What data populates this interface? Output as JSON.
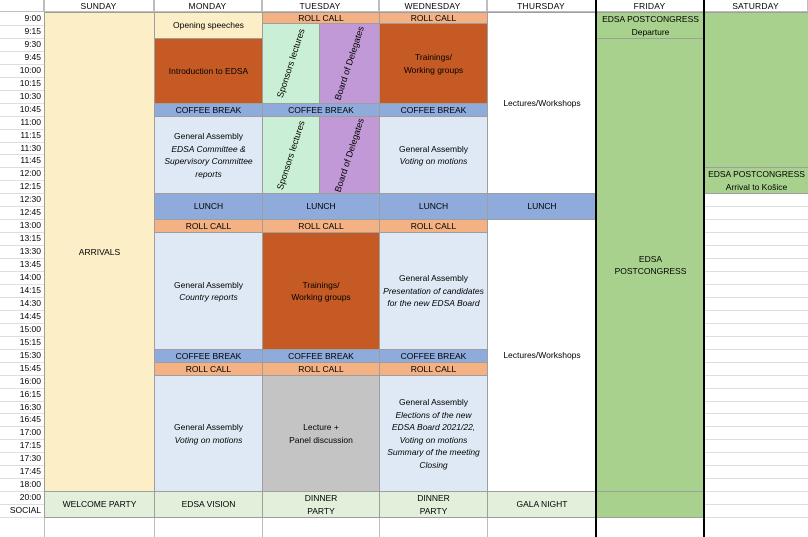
{
  "days": [
    "SUNDAY",
    "MONDAY",
    "TUESDAY",
    "WEDNESDAY",
    "THURSDAY",
    "FRIDAY",
    "SATURDAY"
  ],
  "times": [
    "9:00",
    "9:15",
    "9:30",
    "9:45",
    "10:00",
    "10:15",
    "10:30",
    "10:45",
    "11:00",
    "11:15",
    "11:30",
    "11:45",
    "12:00",
    "12:15",
    "12:30",
    "12:45",
    "13:00",
    "13:15",
    "13:30",
    "13:45",
    "14:00",
    "14:15",
    "14:30",
    "14:45",
    "15:00",
    "15:15",
    "15:30",
    "15:45",
    "16:00",
    "16:15",
    "16:30",
    "16:45",
    "17:00",
    "17:15",
    "17:30",
    "17:45",
    "18:00",
    "20:00",
    "SOCIAL"
  ],
  "colors": {
    "yellow": "#fcefc8",
    "orange_light": "#f4b183",
    "orange_dark": "#c55a25",
    "blue_light": "#dee9f5",
    "blue_mid": "#8eabdc",
    "mint": "#c9f0d6",
    "purple": "#c299d7",
    "gray": "#c4c4c4",
    "green": "#a8d18d",
    "pale_green": "#e2efda"
  },
  "blocks": [
    {
      "day": 0,
      "start": 0,
      "end": 37,
      "color": "yellow",
      "lines": [
        {
          "t": "ARRIVALS"
        }
      ]
    },
    {
      "day": 0,
      "start": 37,
      "end": 39,
      "color": "pale_green",
      "lines": [
        {
          "t": "WELCOME PARTY"
        }
      ]
    },
    {
      "day": 1,
      "start": 0,
      "end": 2,
      "color": "yellow",
      "lines": [
        {
          "t": "Opening speeches"
        }
      ]
    },
    {
      "day": 1,
      "start": 2,
      "end": 7,
      "color": "orange_dark",
      "lines": [
        {
          "t": "Introduction to EDSA"
        }
      ]
    },
    {
      "day": 1,
      "start": 7,
      "end": 8,
      "color": "blue_mid",
      "lines": [
        {
          "t": "COFFEE BREAK"
        }
      ]
    },
    {
      "day": 1,
      "start": 8,
      "end": 14,
      "color": "blue_light",
      "lines": [
        {
          "t": "General Assembly"
        },
        {
          "t": "EDSA Committee &",
          "i": true
        },
        {
          "t": "Supervisory Committee",
          "i": true
        },
        {
          "t": "reports",
          "i": true
        }
      ]
    },
    {
      "day": 1,
      "start": 14,
      "end": 16,
      "color": "blue_mid",
      "lines": [
        {
          "t": "LUNCH"
        }
      ]
    },
    {
      "day": 1,
      "start": 16,
      "end": 17,
      "color": "orange_light",
      "lines": [
        {
          "t": "ROLL CALL"
        }
      ]
    },
    {
      "day": 1,
      "start": 17,
      "end": 26,
      "color": "blue_light",
      "lines": [
        {
          "t": "General Assembly"
        },
        {
          "t": "Country reports",
          "i": true
        }
      ]
    },
    {
      "day": 1,
      "start": 26,
      "end": 27,
      "color": "blue_mid",
      "lines": [
        {
          "t": "COFFEE BREAK"
        }
      ]
    },
    {
      "day": 1,
      "start": 27,
      "end": 28,
      "color": "orange_light",
      "lines": [
        {
          "t": "ROLL CALL"
        }
      ]
    },
    {
      "day": 1,
      "start": 28,
      "end": 37,
      "color": "blue_light",
      "lines": [
        {
          "t": "General Assembly"
        },
        {
          "t": "Voting on motions",
          "i": true
        }
      ]
    },
    {
      "day": 1,
      "start": 37,
      "end": 39,
      "color": "pale_green",
      "lines": [
        {
          "t": "EDSA VISION"
        }
      ]
    },
    {
      "day": 2,
      "start": -0.15,
      "end": 0.85,
      "color": "orange_light",
      "lines": [
        {
          "t": "ROLL CALL"
        }
      ]
    },
    {
      "day": 2,
      "start": 0.85,
      "end": 7,
      "color": "mint",
      "half": "left",
      "vert": "Sponsors lectures"
    },
    {
      "day": 2,
      "start": 0.85,
      "end": 7,
      "color": "purple",
      "half": "right",
      "vert": "Board of Delegates"
    },
    {
      "day": 2,
      "start": 7,
      "end": 8,
      "color": "blue_mid",
      "lines": [
        {
          "t": "COFFEE BREAK"
        }
      ]
    },
    {
      "day": 2,
      "start": 8,
      "end": 14,
      "color": "mint",
      "half": "left",
      "vert": "Sponsors lectures"
    },
    {
      "day": 2,
      "start": 8,
      "end": 14,
      "color": "purple",
      "half": "right",
      "vert": "Board of Delegates"
    },
    {
      "day": 2,
      "start": 14,
      "end": 16,
      "color": "blue_mid",
      "lines": [
        {
          "t": "LUNCH"
        }
      ]
    },
    {
      "day": 2,
      "start": 16,
      "end": 17,
      "color": "orange_light",
      "lines": [
        {
          "t": "ROLL CALL"
        }
      ]
    },
    {
      "day": 2,
      "start": 17,
      "end": 26,
      "color": "orange_dark",
      "lines": [
        {
          "t": "Trainings/"
        },
        {
          "t": "Working groups"
        }
      ]
    },
    {
      "day": 2,
      "start": 26,
      "end": 27,
      "color": "blue_mid",
      "lines": [
        {
          "t": "COFFEE BREAK"
        }
      ]
    },
    {
      "day": 2,
      "start": 27,
      "end": 28,
      "color": "orange_light",
      "lines": [
        {
          "t": "ROLL CALL"
        }
      ]
    },
    {
      "day": 2,
      "start": 28,
      "end": 37,
      "color": "gray",
      "lines": [
        {
          "t": "Lecture +"
        },
        {
          "t": "Panel discussion"
        }
      ]
    },
    {
      "day": 2,
      "start": 37,
      "end": 39,
      "color": "pale_green",
      "lines": [
        {
          "t": "DINNER"
        },
        {
          "t": "PARTY"
        }
      ]
    },
    {
      "day": 3,
      "start": -0.15,
      "end": 0.85,
      "color": "orange_light",
      "lines": [
        {
          "t": "ROLL CALL"
        }
      ]
    },
    {
      "day": 3,
      "start": 0.85,
      "end": 7,
      "color": "orange_dark",
      "lines": [
        {
          "t": "Trainings/"
        },
        {
          "t": "Working groups"
        }
      ]
    },
    {
      "day": 3,
      "start": 7,
      "end": 8,
      "color": "blue_mid",
      "lines": [
        {
          "t": "COFFEE BREAK"
        }
      ]
    },
    {
      "day": 3,
      "start": 8,
      "end": 14,
      "color": "blue_light",
      "lines": [
        {
          "t": "General Assembly"
        },
        {
          "t": "Voting on motions",
          "i": true
        }
      ]
    },
    {
      "day": 3,
      "start": 14,
      "end": 16,
      "color": "blue_mid",
      "lines": [
        {
          "t": "LUNCH"
        }
      ]
    },
    {
      "day": 3,
      "start": 16,
      "end": 17,
      "color": "orange_light",
      "lines": [
        {
          "t": "ROLL CALL"
        }
      ]
    },
    {
      "day": 3,
      "start": 17,
      "end": 26,
      "color": "blue_light",
      "lines": [
        {
          "t": "General Assembly"
        },
        {
          "t": "Presentation of candidates",
          "i": true
        },
        {
          "t": "for the new EDSA Board",
          "i": true
        }
      ]
    },
    {
      "day": 3,
      "start": 26,
      "end": 27,
      "color": "blue_mid",
      "lines": [
        {
          "t": "COFFEE BREAK"
        }
      ]
    },
    {
      "day": 3,
      "start": 27,
      "end": 28,
      "color": "orange_light",
      "lines": [
        {
          "t": "ROLL CALL"
        }
      ]
    },
    {
      "day": 3,
      "start": 28,
      "end": 37,
      "color": "blue_light",
      "lines": [
        {
          "t": "General Assembly"
        },
        {
          "t": "Elections of the new",
          "i": true
        },
        {
          "t": "EDSA Board 2021/22,",
          "i": true
        },
        {
          "t": "Voting on motions",
          "i": true
        },
        {
          "t": " "
        },
        {
          "t": "Summary of the meeting",
          "i": true
        },
        {
          "t": "Closing",
          "i": true
        }
      ]
    },
    {
      "day": 3,
      "start": 37,
      "end": 39,
      "color": "pale_green",
      "lines": [
        {
          "t": "DINNER"
        },
        {
          "t": "PARTY"
        }
      ]
    },
    {
      "day": 4,
      "start": -0.15,
      "end": 14,
      "color": "white",
      "lines": [
        {
          "t": "Lectures/Workshops"
        }
      ]
    },
    {
      "day": 4,
      "start": 14,
      "end": 16,
      "color": "blue_mid",
      "lines": [
        {
          "t": "LUNCH"
        }
      ]
    },
    {
      "day": 4,
      "start": 16,
      "end": 37,
      "color": "white",
      "lines": [
        {
          "t": "Lectures/Workshops"
        }
      ]
    },
    {
      "day": 4,
      "start": 37,
      "end": 39,
      "color": "pale_green",
      "lines": [
        {
          "t": "GALA NIGHT"
        }
      ]
    },
    {
      "day": 5,
      "start": 0,
      "end": 2,
      "color": "green",
      "lines": [
        {
          "t": "EDSA POSTCONGRESS"
        },
        {
          "t": "Departure"
        }
      ]
    },
    {
      "day": 5,
      "start": 2,
      "end": 37,
      "color": "green",
      "lines": [
        {
          "t": "EDSA"
        },
        {
          "t": "POSTCONGRESS"
        }
      ]
    },
    {
      "day": 5,
      "start": 37,
      "end": 39,
      "color": "green",
      "lines": []
    },
    {
      "day": 6,
      "start": -0.15,
      "end": 12,
      "color": "green",
      "lines": []
    },
    {
      "day": 6,
      "start": 12,
      "end": 14,
      "color": "green",
      "lines": [
        {
          "t": "EDSA POSTCONGRESS"
        },
        {
          "t": "Arrival to Košice"
        }
      ]
    }
  ]
}
